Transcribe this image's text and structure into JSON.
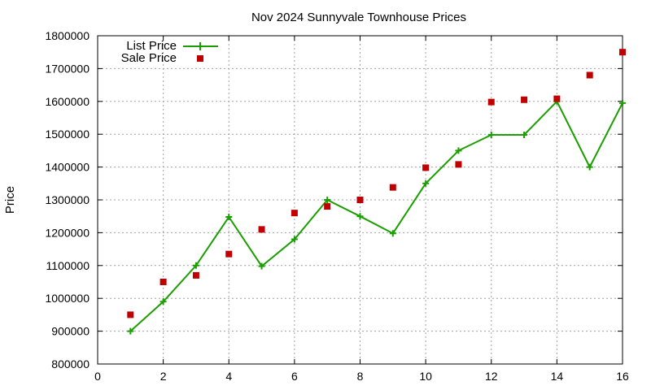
{
  "chart_data": {
    "type": "line",
    "title": "Nov 2024 Sunnyvale Townhouse Prices",
    "xlabel": "",
    "ylabel": "Price",
    "xlim": [
      0,
      16
    ],
    "ylim": [
      800000,
      1800000
    ],
    "xticks": [
      0,
      2,
      4,
      6,
      8,
      10,
      12,
      14,
      16
    ],
    "yticks": [
      800000,
      900000,
      1000000,
      1100000,
      1200000,
      1300000,
      1400000,
      1500000,
      1600000,
      1700000,
      1800000
    ],
    "grid": true,
    "legend": "top-left",
    "series": [
      {
        "name": "List Price",
        "style": "line-points",
        "color": "#1a9e00",
        "marker": "plus",
        "x": [
          1,
          2,
          3,
          4,
          5,
          6,
          7,
          8,
          9,
          10,
          11,
          12,
          13,
          14,
          15,
          16
        ],
        "values": [
          900000,
          990000,
          1100000,
          1248000,
          1098000,
          1180000,
          1300000,
          1250000,
          1198000,
          1350000,
          1450000,
          1498000,
          1498000,
          1600000,
          1400000,
          1595000
        ]
      },
      {
        "name": "Sale Price",
        "style": "points",
        "color": "#c00000",
        "marker": "square",
        "x": [
          1,
          2,
          3,
          4,
          5,
          6,
          7,
          8,
          9,
          10,
          11,
          12,
          13,
          14,
          15,
          16
        ],
        "values": [
          950000,
          1050000,
          1070000,
          1135000,
          1210000,
          1260000,
          1280000,
          1300000,
          1338000,
          1398000,
          1408000,
          1598000,
          1605000,
          1608000,
          1680000,
          1750000
        ]
      }
    ]
  }
}
